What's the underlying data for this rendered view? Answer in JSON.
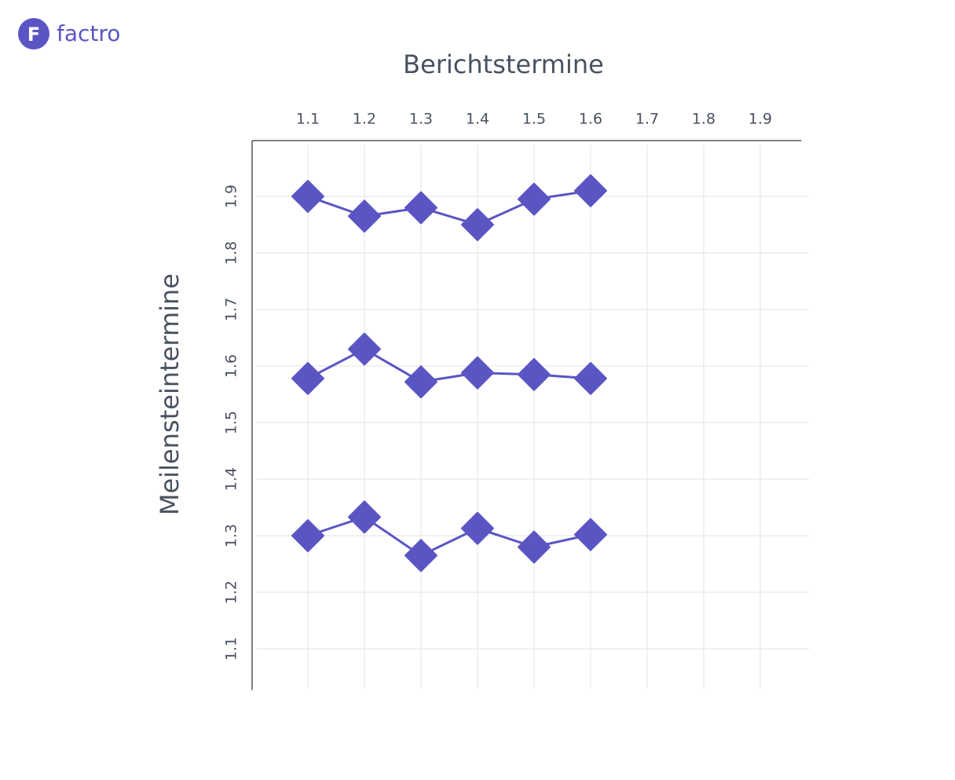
{
  "logo": {
    "icon": "F",
    "text": "factro"
  },
  "chart_data": {
    "type": "line",
    "title": "Berichtstermine",
    "ylabel": "Meilensteintermine",
    "x": [
      1.1,
      1.2,
      1.3,
      1.4,
      1.5,
      1.6
    ],
    "series": [
      {
        "color": "#5b55c4",
        "values": [
          1.9,
          1.865,
          1.88,
          1.85,
          1.895,
          1.91
        ]
      },
      {
        "color": "#5b55c4",
        "values": [
          1.578,
          1.63,
          1.572,
          1.588,
          1.585,
          1.578
        ]
      },
      {
        "color": "#5b55c4",
        "values": [
          1.3,
          1.333,
          1.265,
          1.313,
          1.28,
          1.302
        ]
      }
    ],
    "xlim": [
      1.0,
      1.97
    ],
    "xticks": [
      1.1,
      1.2,
      1.3,
      1.4,
      1.5,
      1.6,
      1.7,
      1.8,
      1.9
    ],
    "ylim": [
      1.03,
      2.0
    ],
    "yticks": [
      1.1,
      1.2,
      1.3,
      1.4,
      1.5,
      1.6,
      1.7,
      1.8,
      1.9
    ],
    "grid": true,
    "marker": "diamond"
  }
}
